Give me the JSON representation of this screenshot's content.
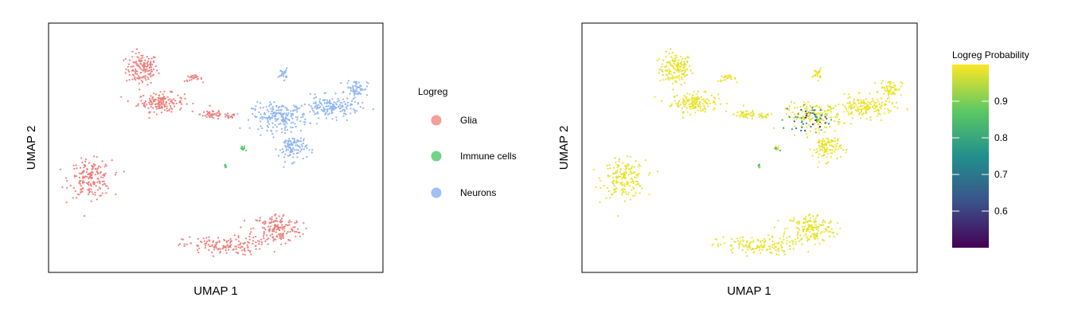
{
  "chart_data": [
    {
      "type": "scatter",
      "xlabel": "UMAP 1",
      "ylabel": "UMAP 2",
      "xlim": [
        0,
        100
      ],
      "ylim": [
        0,
        100
      ],
      "grid": false,
      "legend": {
        "title": "Logreg",
        "placement": "right",
        "entries": [
          {
            "name": "Glia",
            "color": "#F07F7A"
          },
          {
            "name": "Immune cells",
            "color": "#4DC96A"
          },
          {
            "name": "Neurons",
            "color": "#8FB5F5"
          }
        ]
      },
      "clusters": [
        {
          "series": "Glia",
          "cx": 27,
          "cy": 83,
          "rx": 4.5,
          "ry": 6,
          "n": 150
        },
        {
          "series": "Glia",
          "cx": 33,
          "cy": 69,
          "rx": 6.5,
          "ry": 3.5,
          "n": 160
        },
        {
          "series": "Glia",
          "cx": 43,
          "cy": 79,
          "rx": 2.5,
          "ry": 1.2,
          "n": 25
        },
        {
          "series": "Glia",
          "cx": 49,
          "cy": 64,
          "rx": 3.5,
          "ry": 2,
          "n": 45
        },
        {
          "series": "Glia",
          "cx": 54,
          "cy": 63,
          "rx": 2,
          "ry": 1.2,
          "n": 15
        },
        {
          "series": "Glia",
          "cx": 11,
          "cy": 37,
          "rx": 6,
          "ry": 7,
          "n": 180
        },
        {
          "series": "Glia",
          "cx": 69,
          "cy": 16,
          "rx": 7,
          "ry": 6,
          "n": 170
        },
        {
          "series": "Glia",
          "cx": 52,
          "cy": 9,
          "rx": 11,
          "ry": 3.5,
          "n": 140
        },
        {
          "series": "Immune cells",
          "cx": 58.5,
          "cy": 49.5,
          "rx": 0.8,
          "ry": 1.2,
          "n": 12
        },
        {
          "series": "Immune cells",
          "cx": 53,
          "cy": 42.5,
          "rx": 0.5,
          "ry": 0.8,
          "n": 6
        },
        {
          "series": "Neurons",
          "cx": 71,
          "cy": 81,
          "rx": 1.2,
          "ry": 2,
          "n": 25
        },
        {
          "series": "Neurons",
          "cx": 70,
          "cy": 63,
          "rx": 8,
          "ry": 5,
          "n": 200
        },
        {
          "series": "Neurons",
          "cx": 74,
          "cy": 50,
          "rx": 4,
          "ry": 5,
          "n": 110
        },
        {
          "series": "Neurons",
          "cx": 86,
          "cy": 67,
          "rx": 8,
          "ry": 4,
          "n": 170
        },
        {
          "series": "Neurons",
          "cx": 94,
          "cy": 75,
          "rx": 3,
          "ry": 3,
          "n": 60
        }
      ]
    },
    {
      "type": "scatter",
      "xlabel": "UMAP 1",
      "ylabel": "UMAP 2",
      "xlim": [
        0,
        100
      ],
      "ylim": [
        0,
        100
      ],
      "grid": false,
      "colorbar": {
        "title": "Logreg Probability",
        "placement": "right",
        "range": [
          0.5,
          1.0
        ],
        "ticks": [
          0.6,
          0.7,
          0.8,
          0.9
        ],
        "colormap": [
          "#440154",
          "#3B528B",
          "#21908C",
          "#5DC963",
          "#FDE725"
        ]
      },
      "uncertain_region": {
        "cx": 67,
        "cy": 60,
        "rx": 9,
        "ry": 8,
        "probability_range": [
          0.5,
          0.9
        ]
      }
    }
  ]
}
